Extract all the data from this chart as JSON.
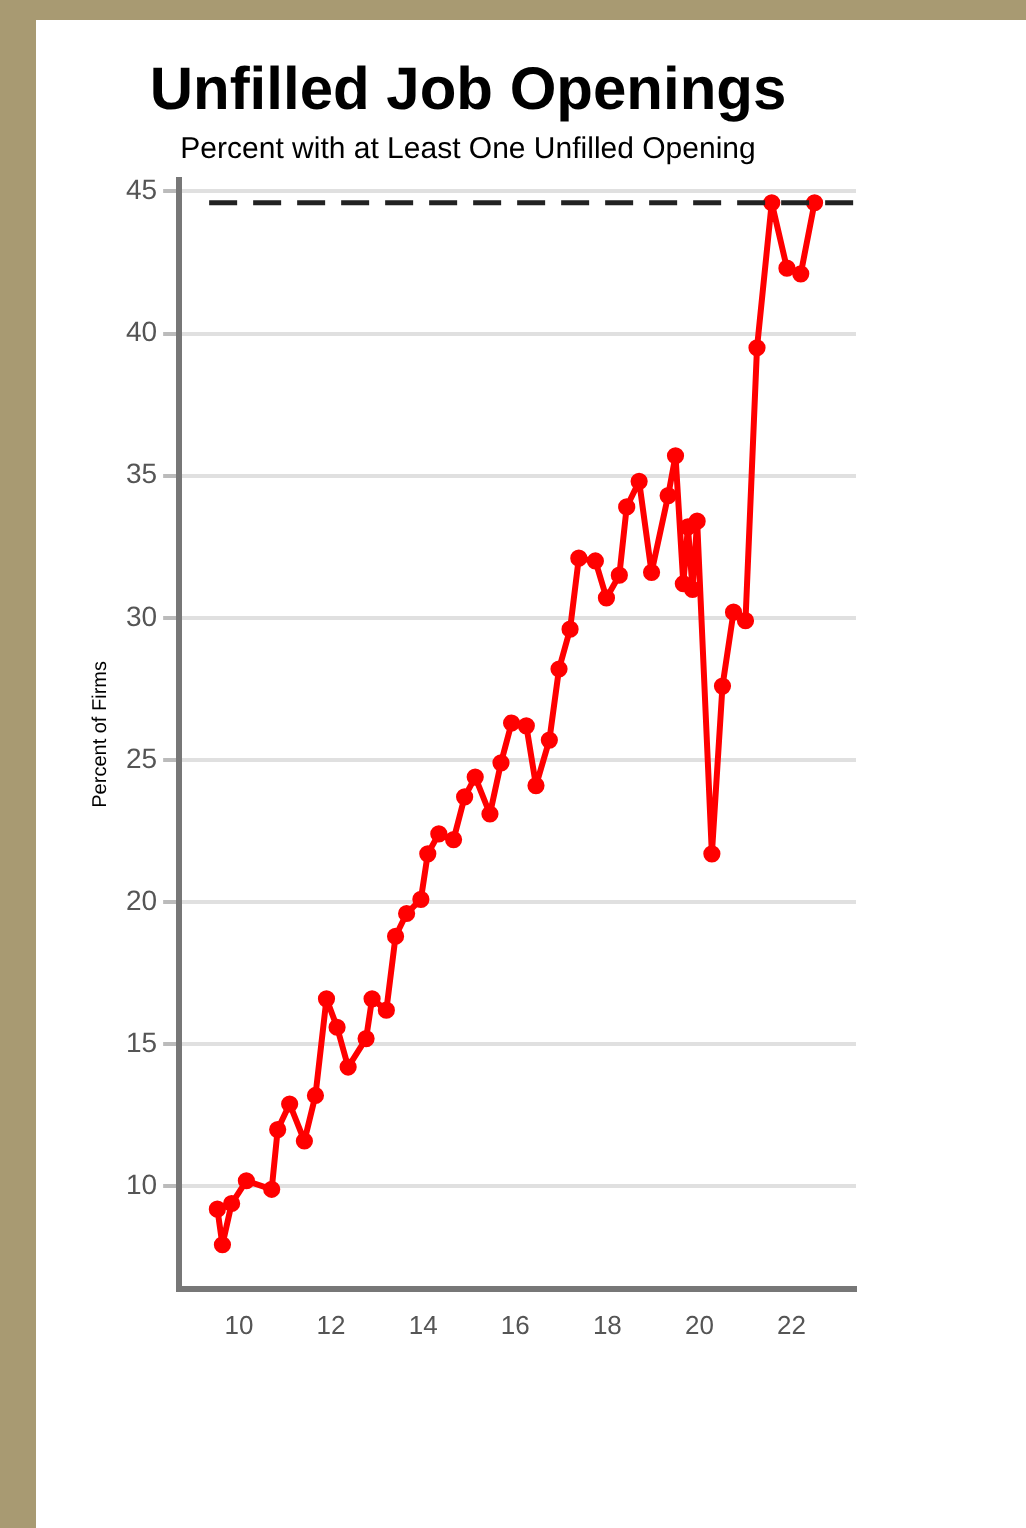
{
  "chart_data": {
    "type": "line",
    "title": "Unfilled Job Openings",
    "subtitle": "Percent with at Least One Unfilled Opening",
    "ylabel": "Percent of Firms",
    "x": [
      9.53,
      9.64,
      9.84,
      10.16,
      10.71,
      10.84,
      11.1,
      11.42,
      11.66,
      11.9,
      12.13,
      12.37,
      12.76,
      12.89,
      13.2,
      13.4,
      13.64,
      13.95,
      14.1,
      14.34,
      14.66,
      14.9,
      15.13,
      15.45,
      15.69,
      15.92,
      16.24,
      16.45,
      16.74,
      16.95,
      17.19,
      17.38,
      17.74,
      17.98,
      18.26,
      18.42,
      18.69,
      18.96,
      19.32,
      19.48,
      19.65,
      19.75,
      19.85,
      19.95,
      20.27,
      20.5,
      20.74,
      21.0,
      21.25,
      21.57,
      21.9,
      22.2,
      22.5
    ],
    "series": [
      {
        "color": "#ff0000",
        "values": [
          9.2,
          7.95,
          9.4,
          10.2,
          9.9,
          12.0,
          12.9,
          11.6,
          13.2,
          16.6,
          15.6,
          14.2,
          15.2,
          16.6,
          16.2,
          18.8,
          19.6,
          20.1,
          21.7,
          22.4,
          22.2,
          23.7,
          24.4,
          23.1,
          24.9,
          26.3,
          26.2,
          24.1,
          25.7,
          28.2,
          29.6,
          32.1,
          32.0,
          30.7,
          31.5,
          33.9,
          34.8,
          31.6,
          34.3,
          35.7,
          31.2,
          33.2,
          31.0,
          33.4,
          21.7,
          27.6,
          30.2,
          29.9,
          39.5,
          44.6,
          42.3,
          42.1,
          44.6
        ]
      }
    ],
    "xlim": [
      8.7,
      23.4
    ],
    "ylim": [
      6.4,
      45.4
    ],
    "xticks": [
      {
        "value": 10,
        "label": "10"
      },
      {
        "value": 12,
        "label": "12"
      },
      {
        "value": 14,
        "label": "14"
      },
      {
        "value": 16,
        "label": "16"
      },
      {
        "value": 18,
        "label": "18"
      },
      {
        "value": 20,
        "label": "20"
      },
      {
        "value": 22,
        "label": "22"
      }
    ],
    "yticks": [
      10,
      15,
      20,
      25,
      30,
      35,
      40,
      45
    ],
    "ref_lines": [
      {
        "axis": "y",
        "value": 44.6,
        "color": "#222222",
        "line_style": "dashed"
      }
    ],
    "grid": "y",
    "legend": false,
    "marker": "circle",
    "line_style": "solid"
  }
}
